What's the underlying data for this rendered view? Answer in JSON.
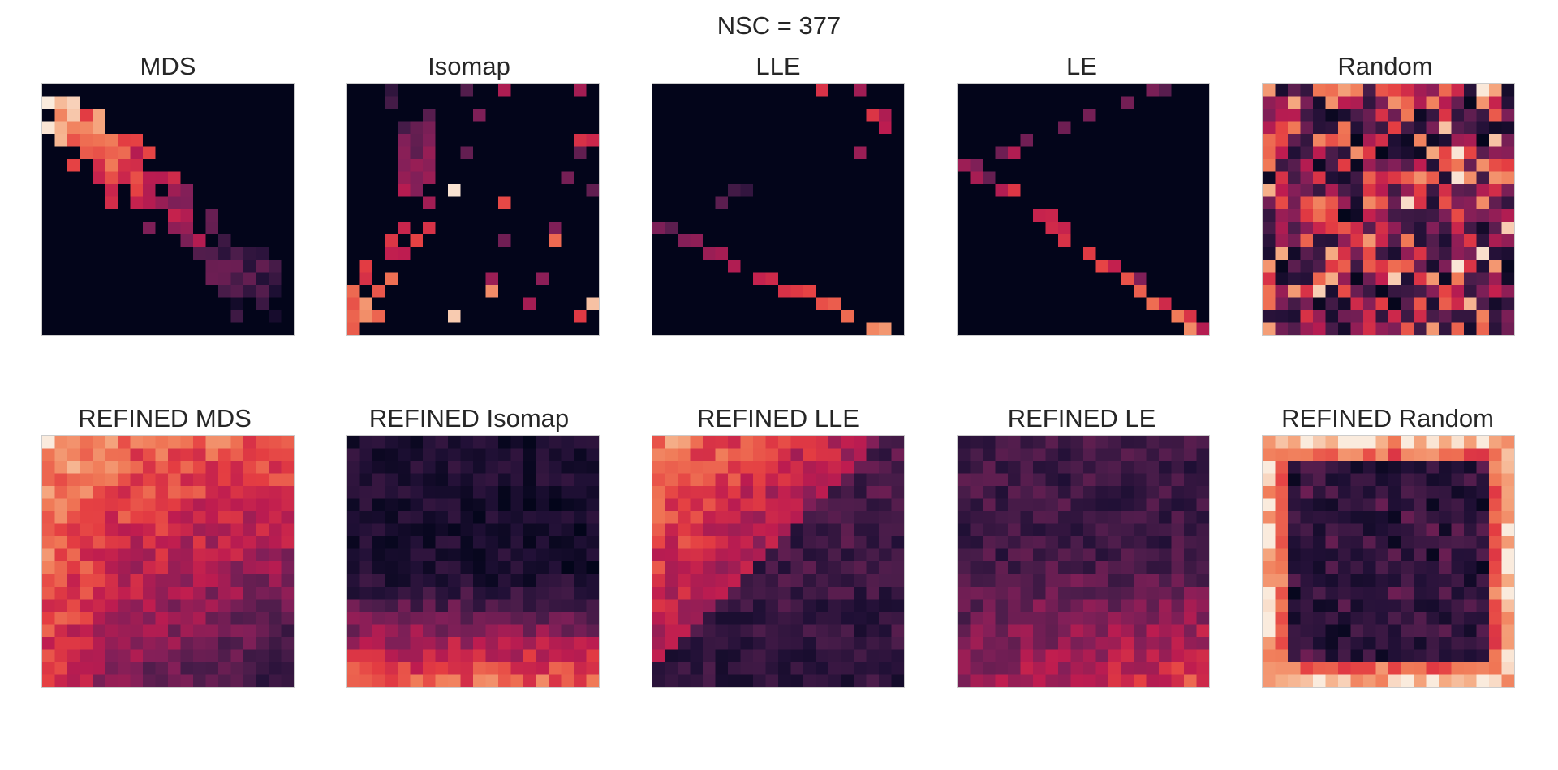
{
  "figure": {
    "suptitle": "NSC = 377"
  },
  "chart_data": [
    {
      "type": "heatmap",
      "title": "MDS",
      "grid": false,
      "colormap": "rocket",
      "pattern": "mds"
    },
    {
      "type": "heatmap",
      "title": "Isomap",
      "grid": false,
      "colormap": "rocket",
      "pattern": "isomap"
    },
    {
      "type": "heatmap",
      "title": "LLE",
      "grid": false,
      "colormap": "rocket",
      "pattern": "lle"
    },
    {
      "type": "heatmap",
      "title": "LE",
      "grid": false,
      "colormap": "rocket",
      "pattern": "le"
    },
    {
      "type": "heatmap",
      "title": "Random",
      "grid": false,
      "colormap": "rocket",
      "pattern": "random"
    },
    {
      "type": "heatmap",
      "title": "REFINED MDS",
      "grid": false,
      "colormap": "rocket",
      "pattern": "ref_mds"
    },
    {
      "type": "heatmap",
      "title": "REFINED Isomap",
      "grid": false,
      "colormap": "rocket",
      "pattern": "ref_isomap"
    },
    {
      "type": "heatmap",
      "title": "REFINED LLE",
      "grid": false,
      "colormap": "rocket",
      "pattern": "ref_lle"
    },
    {
      "type": "heatmap",
      "title": "REFINED LE",
      "grid": false,
      "colormap": "rocket",
      "pattern": "ref_le"
    },
    {
      "type": "heatmap",
      "title": "REFINED Random",
      "grid": false,
      "colormap": "rocket",
      "pattern": "ref_random"
    }
  ]
}
